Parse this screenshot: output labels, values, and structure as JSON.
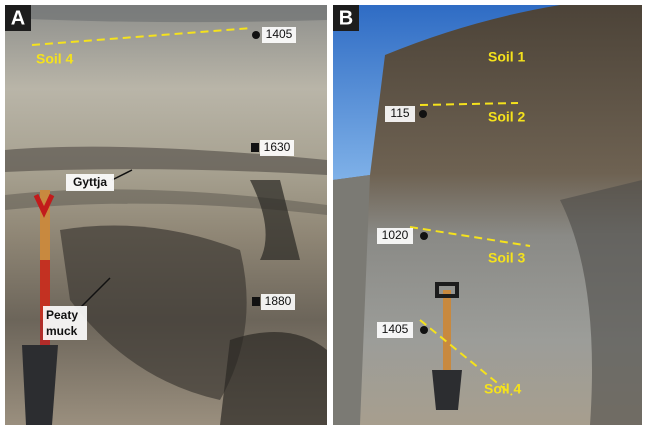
{
  "panels": [
    {
      "label": "A",
      "depths": [
        "1405",
        "1630",
        "1880"
      ],
      "soils": [
        "Soil 4"
      ],
      "features": [
        "Gyttja",
        "Peaty muck"
      ]
    },
    {
      "label": "B",
      "depths": [
        "115",
        "1020",
        "1405"
      ],
      "soils": [
        "Soil 1",
        "Soil 2",
        "Soil 3",
        "Soil 4"
      ]
    }
  ]
}
